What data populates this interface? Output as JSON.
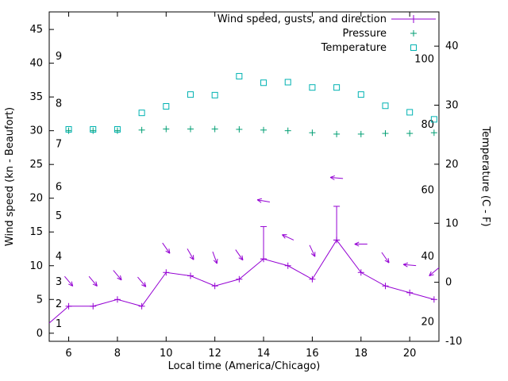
{
  "chart": {
    "legend": [
      {
        "label": "Wind speed, gusts, and direction",
        "color": "#9400d3",
        "marker": "errorbar-line"
      },
      {
        "label": "Pressure",
        "color": "#009e73",
        "marker": "plus"
      },
      {
        "label": "Temperature",
        "color": "#00b2b2",
        "marker": "open-square"
      }
    ],
    "axes": {
      "x": {
        "label": "Local time (America/Chicago)",
        "ticks": [
          6,
          8,
          10,
          12,
          14,
          16,
          18,
          20
        ],
        "min": 5.2,
        "max": 21.2
      },
      "y_left": {
        "label": "Wind speed (kn - Beaufort)",
        "ticks": [
          0,
          5,
          10,
          15,
          20,
          25,
          30,
          35,
          40,
          45
        ],
        "min": -1.2,
        "max": 47.6
      },
      "y_right": {
        "label": "Temperature (C - F)",
        "ticks": [
          -10,
          0,
          10,
          20,
          30,
          40
        ],
        "min": -10,
        "max": 45.8
      },
      "beaufort_scale": [
        {
          "label": "1",
          "kn": 1.4
        },
        {
          "label": "2",
          "kn": 4.3
        },
        {
          "label": "3",
          "kn": 7.6
        },
        {
          "label": "4",
          "kn": 11.4
        },
        {
          "label": "5",
          "kn": 17.4
        },
        {
          "label": "6",
          "kn": 21.7
        },
        {
          "label": "7",
          "kn": 28
        },
        {
          "label": "8",
          "kn": 34
        },
        {
          "label": "9",
          "kn": 41
        }
      ],
      "fahrenheit_scale": [
        {
          "label": "20",
          "c": -6.7
        },
        {
          "label": "40",
          "c": 4.4
        },
        {
          "label": "60",
          "c": 15.6
        },
        {
          "label": "80",
          "c": 26.7
        },
        {
          "label": "100",
          "c": 37.8
        }
      ]
    }
  },
  "chart_data": {
    "type": "line",
    "x_label": "Local time (America/Chicago)",
    "x_hours": [
      6,
      7,
      8,
      9,
      10,
      11,
      12,
      13,
      14,
      15,
      16,
      17,
      18,
      19,
      20,
      21
    ],
    "series": [
      {
        "name": "Wind speed",
        "unit": "kn",
        "axis": "left",
        "color": "#9400d3",
        "marker": "plus",
        "style": "line",
        "lead_in": {
          "x": 5.2,
          "y": 1.5
        },
        "values": [
          4,
          4,
          5,
          4,
          9,
          8.5,
          7,
          8,
          11,
          10,
          8,
          13.8,
          9,
          7,
          6,
          5
        ]
      },
      {
        "name": "Wind gusts",
        "unit": "kn",
        "axis": "left",
        "color": "#9400d3",
        "style": "errorbar",
        "bars": [
          {
            "x": 14,
            "low": 11,
            "high": 15.8
          },
          {
            "x": 17,
            "low": 13.8,
            "high": 18.8
          }
        ]
      },
      {
        "name": "Wind direction",
        "axis": "left",
        "color": "#9400d3",
        "style": "arrows",
        "arrows": [
          {
            "x": 6,
            "kn": 7.7,
            "angle_deg": 50
          },
          {
            "x": 7,
            "kn": 7.7,
            "angle_deg": 50
          },
          {
            "x": 8,
            "kn": 8.6,
            "angle_deg": 50
          },
          {
            "x": 9,
            "kn": 7.6,
            "angle_deg": 50
          },
          {
            "x": 10,
            "kn": 12.6,
            "angle_deg": 55
          },
          {
            "x": 11,
            "kn": 11.7,
            "angle_deg": 60
          },
          {
            "x": 12,
            "kn": 11.2,
            "angle_deg": 70
          },
          {
            "x": 13,
            "kn": 11.6,
            "angle_deg": 55
          },
          {
            "x": 14,
            "kn": 19.6,
            "angle_deg": 190
          },
          {
            "x": 15,
            "kn": 14.2,
            "angle_deg": 205
          },
          {
            "x": 16,
            "kn": 12.2,
            "angle_deg": 65
          },
          {
            "x": 17,
            "kn": 23,
            "angle_deg": 185
          },
          {
            "x": 18,
            "kn": 13.2,
            "angle_deg": 180
          },
          {
            "x": 19,
            "kn": 11.2,
            "angle_deg": 55
          },
          {
            "x": 20,
            "kn": 10.1,
            "angle_deg": 185
          },
          {
            "x": 21,
            "kn": 9.1,
            "angle_deg": 140
          }
        ]
      },
      {
        "name": "Pressure",
        "axis": "left",
        "color": "#009e73",
        "marker": "plus",
        "style": "points",
        "values": [
          30,
          30,
          30,
          30.1,
          30.25,
          30.25,
          30.25,
          30.2,
          30.1,
          30,
          29.7,
          29.5,
          29.5,
          29.6,
          29.6,
          29.7
        ]
      },
      {
        "name": "Temperature",
        "unit": "C",
        "axis": "right",
        "color": "#00b2b2",
        "marker": "open-square",
        "style": "points",
        "values": [
          25.9,
          25.9,
          25.9,
          28.7,
          29.8,
          31.8,
          31.7,
          34.9,
          33.8,
          33.9,
          33.0,
          33.0,
          31.8,
          29.9,
          28.8,
          27.6
        ]
      }
    ]
  }
}
